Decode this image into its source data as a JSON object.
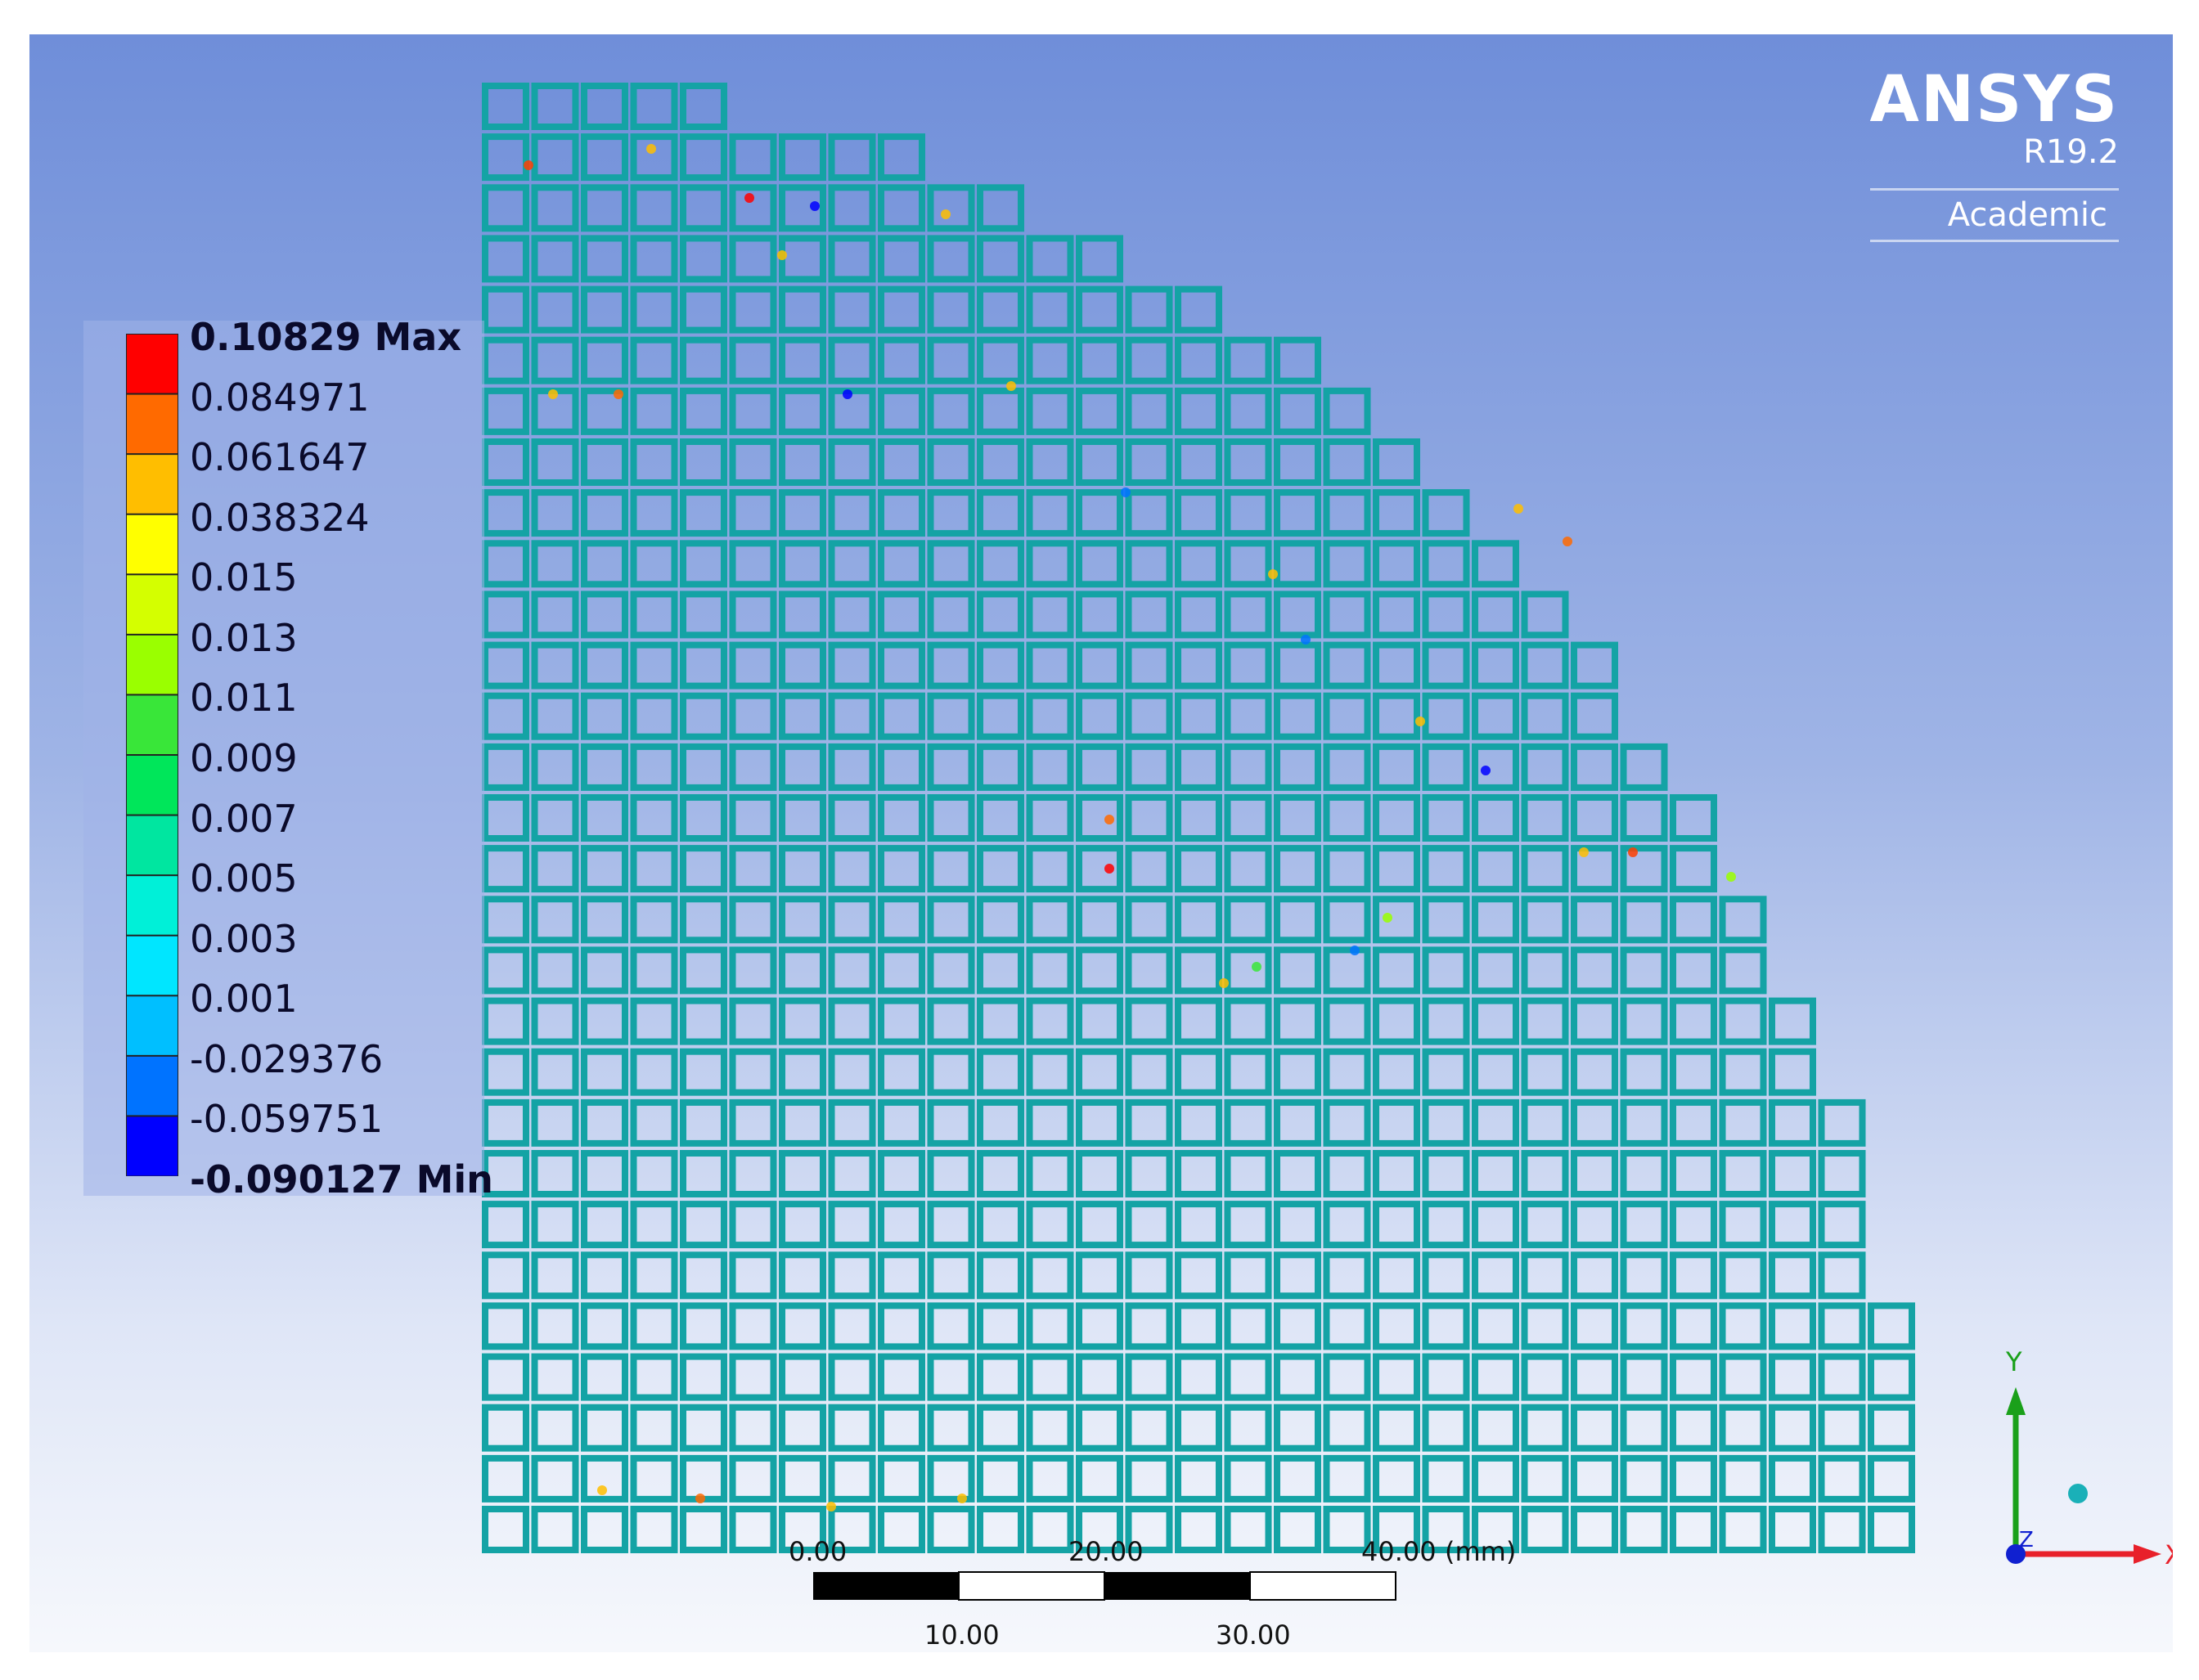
{
  "brand": {
    "name": "ANSYS",
    "version": "R19.2",
    "edition": "Academic"
  },
  "legend": {
    "labels": [
      "0.10829 Max",
      "0.084971",
      "0.061647",
      "0.038324",
      "0.015",
      "0.013",
      "0.011",
      "0.009",
      "0.007",
      "0.005",
      "0.003",
      "0.001",
      "-0.029376",
      "-0.059751",
      "-0.090127 Min"
    ],
    "colors": [
      "#ff0000",
      "#ff6a00",
      "#ffbe00",
      "#ffff00",
      "#d4ff00",
      "#9aff00",
      "#39e639",
      "#00e65a",
      "#00e6a0",
      "#00f0d8",
      "#00e6ff",
      "#00bfff",
      "#0073ff",
      "#0000ff"
    ]
  },
  "model": {
    "cell_color": "#14a3a5"
  },
  "scale": {
    "ticks_top": [
      "0.00",
      "20.00",
      "40.00"
    ],
    "unit": "(mm)",
    "ticks_bottom": [
      "10.00",
      "30.00"
    ]
  },
  "triad": {
    "x_label": "X",
    "y_label": "Y",
    "z_label": "Z",
    "x_color": "#e8202a",
    "y_color": "#1aa01a",
    "z_color": "#1020d0",
    "ball_color": "#1ab0b8"
  }
}
